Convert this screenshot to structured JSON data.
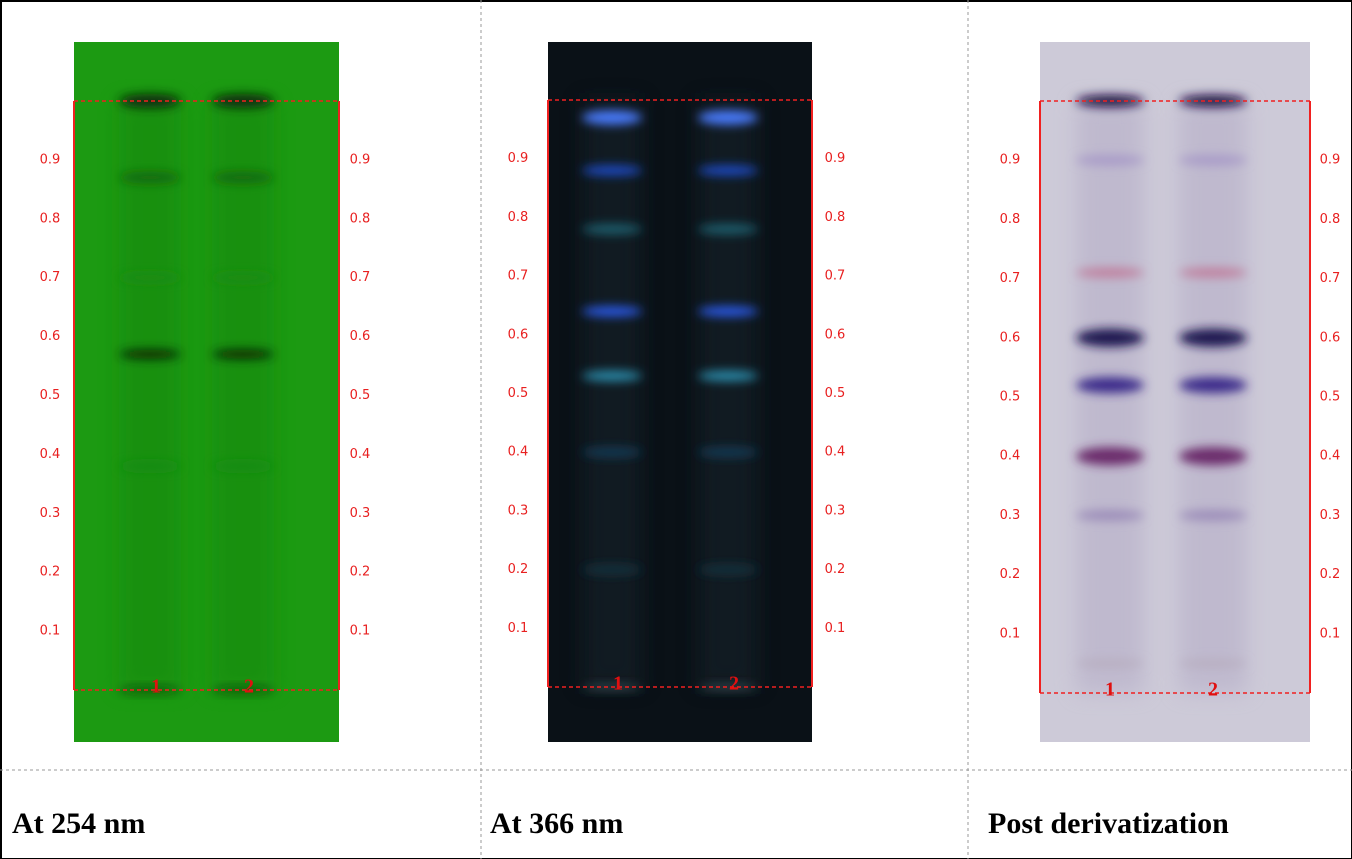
{
  "panels": [
    {
      "caption": "At 254 nm",
      "rf_labels": [
        "0.9",
        "0.8",
        "0.7",
        "0.6",
        "0.5",
        "0.4",
        "0.3",
        "0.2",
        "0.1"
      ],
      "lanes": [
        "1",
        "2"
      ]
    },
    {
      "caption": "At 366 nm",
      "rf_labels": [
        "0.9",
        "0.8",
        "0.7",
        "0.6",
        "0.5",
        "0.4",
        "0.3",
        "0.2",
        "0.1"
      ],
      "lanes": [
        "1",
        "2"
      ]
    },
    {
      "caption": "Post derivatization",
      "rf_labels": [
        "0.9",
        "0.8",
        "0.7",
        "0.6",
        "0.5",
        "0.4",
        "0.3",
        "0.2",
        "0.1"
      ],
      "lanes": [
        "1",
        "2"
      ]
    }
  ]
}
